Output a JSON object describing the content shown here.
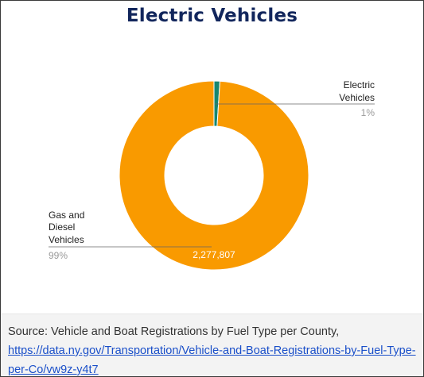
{
  "title": "Electric Vehicles",
  "chart_data": {
    "type": "pie",
    "variant": "donut",
    "title": "Electric Vehicles",
    "slices": [
      {
        "label_lines": [
          "Electric",
          "Vehicles"
        ],
        "percent_label": "1%",
        "percent": 1,
        "color": "#16866f"
      },
      {
        "label_lines": [
          "Gas and",
          "Diesel",
          "Vehicles"
        ],
        "percent_label": "99%",
        "percent": 99,
        "value_label": "2,277,807",
        "value": 2277807,
        "color": "#f99a00"
      }
    ]
  },
  "footer": {
    "source_text": "Source: Vehicle and Boat Registrations by Fuel Type per County,",
    "link_text": "https://data.ny.gov/Transportation/Vehicle-and-Boat-Registrations-by-Fuel-Type-per-Co/vw9z-y4t7"
  }
}
